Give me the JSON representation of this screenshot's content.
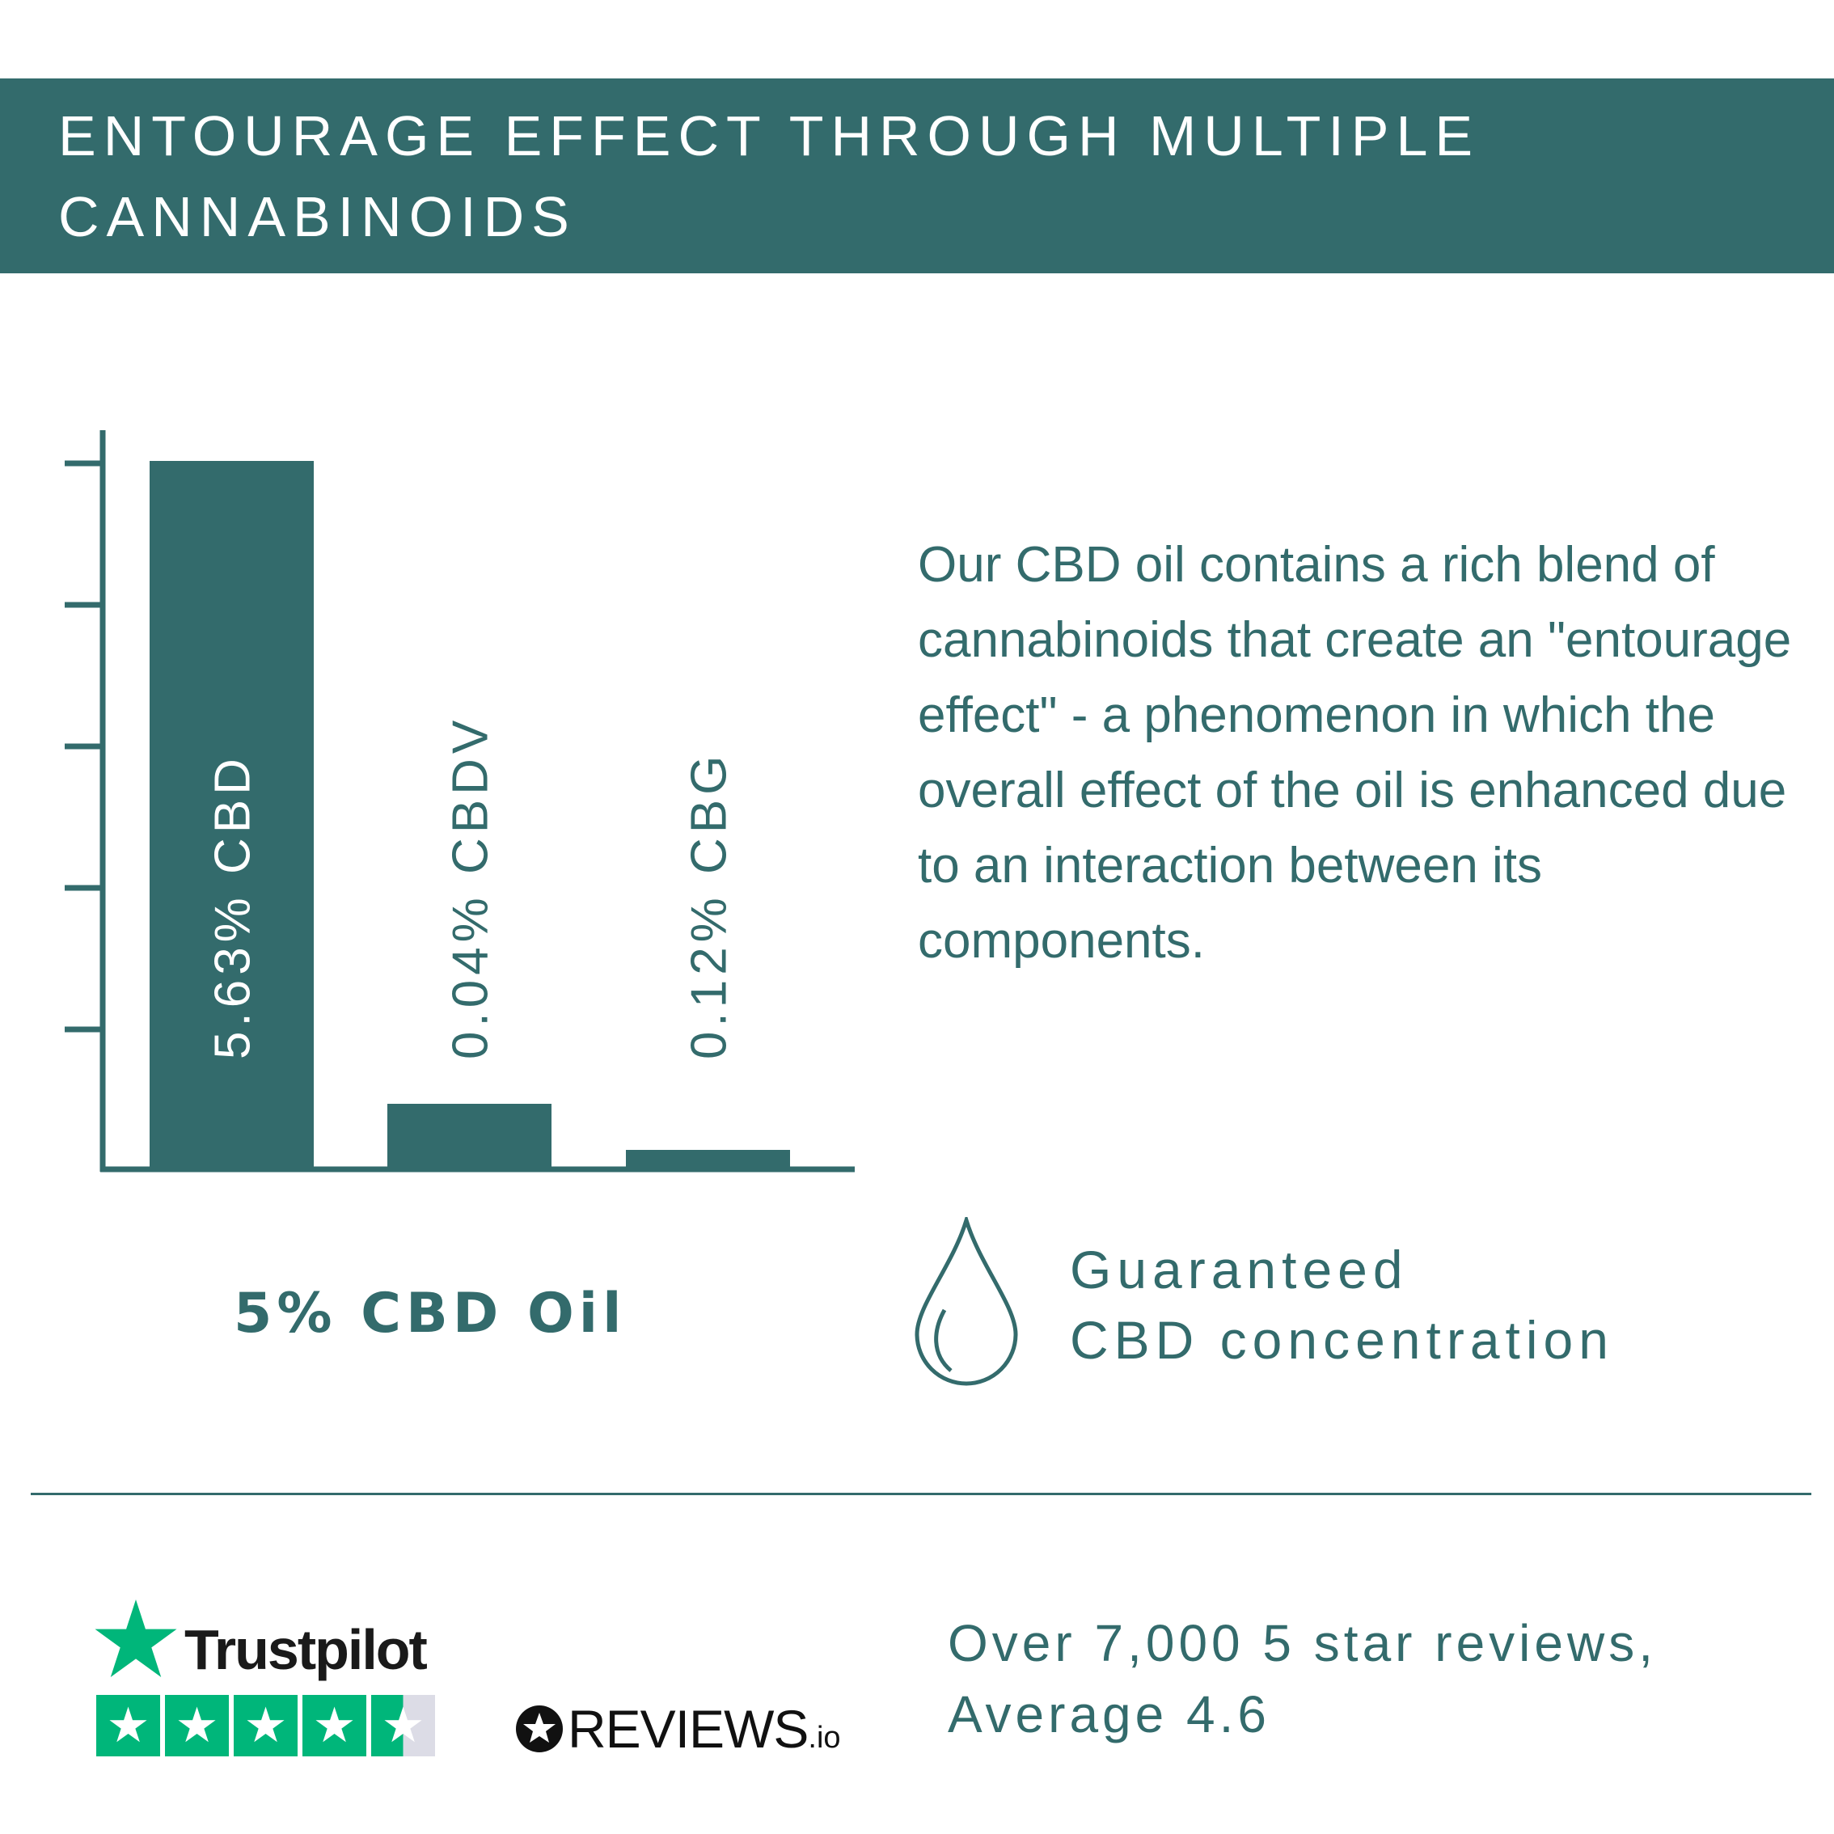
{
  "header": {
    "title_line1": "ENTOURAGE EFFECT THROUGH MULTIPLE",
    "title_line2": "CANNABINOIDS"
  },
  "colors": {
    "brand": "#336b6c",
    "trustpilot_green": "#00b67a"
  },
  "chart_data": {
    "type": "bar",
    "categories": [
      "CBD",
      "CBDV",
      "CBG"
    ],
    "values": [
      5.63,
      0.04,
      0.12
    ],
    "labels": [
      "5.63% CBD",
      "0.04% CBDV",
      "0.12% CBG"
    ],
    "title": "5% CBD Oil",
    "xlabel": "",
    "ylabel": "",
    "grid": false
  },
  "description": "Our CBD oil contains a rich blend of cannabinoids that create an \"entourage effect\" - a phenomenon in which the overall effect of the oil is enhanced due to an interaction between its components.",
  "guarantee": {
    "icon": "droplet-icon",
    "line1": "Guaranteed",
    "line2": "CBD concentration"
  },
  "reviews": {
    "trustpilot": "Trustpilot",
    "trustpilot_rating": 4.5,
    "reviewsio": "REVIEWS",
    "reviewsio_suffix": ".io",
    "line1": "Over 7,000 5 star reviews,",
    "line2": "Average 4.6"
  }
}
